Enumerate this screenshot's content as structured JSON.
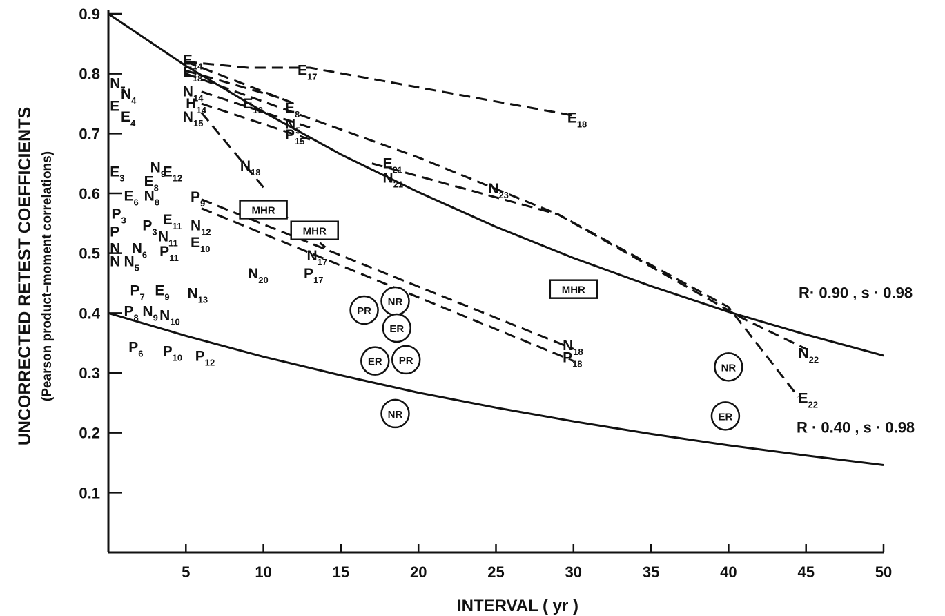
{
  "chart_data": {
    "type": "line",
    "ylabel_line1": "UNCORRECTED RETEST COEFFICIENTS",
    "ylabel_line2": "(Pearson product–moment correlations)",
    "xlabel": "INTERVAL ( yr )",
    "xlim": [
      0,
      50
    ],
    "ylim": [
      0,
      0.9
    ],
    "x_ticks": [
      5,
      10,
      15,
      20,
      25,
      30,
      35,
      40,
      45,
      50
    ],
    "x_tick_labels": [
      "5",
      "10",
      "15",
      "20",
      "25",
      "30",
      "35",
      "40",
      "45",
      "50"
    ],
    "y_ticks": [
      0.1,
      0.2,
      0.3,
      0.4,
      0.5,
      0.6,
      0.7,
      0.8,
      0.9
    ],
    "y_tick_labels": [
      "0.1",
      "0.2",
      "0.3",
      "0.4",
      "0.5",
      "0.6",
      "0.7",
      "0.8",
      "0.9"
    ],
    "model_curves": [
      {
        "annotation": "R· 0.90 , s · 0.98",
        "x": [
          0,
          5,
          10,
          15,
          20,
          25,
          30,
          35,
          40,
          45,
          50
        ],
        "y": [
          0.9,
          0.813,
          0.736,
          0.665,
          0.602,
          0.544,
          0.492,
          0.445,
          0.402,
          0.364,
          0.329
        ]
      },
      {
        "annotation": "R · 0.40 , s · 0.98",
        "x": [
          0,
          5,
          10,
          15,
          20,
          25,
          30,
          35,
          40,
          45,
          50
        ],
        "y": [
          0.4,
          0.362,
          0.327,
          0.296,
          0.267,
          0.242,
          0.219,
          0.198,
          0.179,
          0.162,
          0.146
        ]
      }
    ],
    "dashed_series": [
      {
        "points": [
          [
            5,
            0.82
          ],
          [
            9,
            0.81
          ],
          [
            13,
            0.81
          ],
          [
            30,
            0.73
          ]
        ]
      },
      {
        "points": [
          [
            5,
            0.82
          ],
          [
            12,
            0.75
          ]
        ]
      },
      {
        "points": [
          [
            5,
            0.805
          ],
          [
            11,
            0.76
          ]
        ]
      },
      {
        "points": [
          [
            5,
            0.8
          ],
          [
            20,
            0.66
          ],
          [
            29,
            0.565
          ],
          [
            41,
            0.39
          ],
          [
            45,
            0.34
          ]
        ]
      },
      {
        "points": [
          [
            6,
            0.77
          ],
          [
            13,
            0.71
          ]
        ]
      },
      {
        "points": [
          [
            6,
            0.75
          ],
          [
            13,
            0.69
          ]
        ]
      },
      {
        "points": [
          [
            6,
            0.735
          ],
          [
            10,
            0.61
          ]
        ]
      },
      {
        "points": [
          [
            6,
            0.59
          ],
          [
            30,
            0.34
          ]
        ]
      },
      {
        "points": [
          [
            6,
            0.575
          ],
          [
            30,
            0.32
          ]
        ]
      },
      {
        "points": [
          [
            11,
            0.57
          ],
          [
            14,
            0.51
          ]
        ]
      },
      {
        "points": [
          [
            17,
            0.65
          ],
          [
            29,
            0.565
          ],
          [
            40,
            0.41
          ],
          [
            44.5,
            0.26
          ]
        ]
      }
    ],
    "labels": [
      {
        "text": "E",
        "sub": "14",
        "x": 4.8,
        "y": 0.815
      },
      {
        "text": "E",
        "sub": "18",
        "x": 4.8,
        "y": 0.795
      },
      {
        "text": "E",
        "sub": "17",
        "x": 12.2,
        "y": 0.798
      },
      {
        "text": "N",
        "sub": "14",
        "x": 4.8,
        "y": 0.762
      },
      {
        "text": "E",
        "sub": "19",
        "x": 8.7,
        "y": 0.742
      },
      {
        "text": "E",
        "sub": "8",
        "x": 11.4,
        "y": 0.735
      },
      {
        "text": "H",
        "sub": "14",
        "x": 5.0,
        "y": 0.742
      },
      {
        "text": "N",
        "sub": "15",
        "x": 4.8,
        "y": 0.72
      },
      {
        "text": "N",
        "sub": "5",
        "x": 11.4,
        "y": 0.708
      },
      {
        "text": "P",
        "sub": "15",
        "x": 11.4,
        "y": 0.69
      },
      {
        "text": "E",
        "sub": "18",
        "x": 29.6,
        "y": 0.718
      },
      {
        "text": "N",
        "sub": "7",
        "x": 0.1,
        "y": 0.776
      },
      {
        "text": "N",
        "sub": "4",
        "x": 0.8,
        "y": 0.758
      },
      {
        "text": "E",
        "sub": "",
        "x": 0.1,
        "y": 0.738
      },
      {
        "text": "E",
        "sub": "4",
        "x": 0.8,
        "y": 0.72
      },
      {
        "text": "N",
        "sub": "18",
        "x": 8.5,
        "y": 0.638
      },
      {
        "text": "E",
        "sub": "3",
        "x": 0.1,
        "y": 0.628
      },
      {
        "text": "N",
        "sub": "9",
        "x": 2.7,
        "y": 0.635
      },
      {
        "text": "E",
        "sub": "12",
        "x": 3.5,
        "y": 0.628
      },
      {
        "text": "E",
        "sub": "8",
        "x": 2.3,
        "y": 0.612
      },
      {
        "text": "E",
        "sub": "6",
        "x": 1.0,
        "y": 0.588
      },
      {
        "text": "N",
        "sub": "8",
        "x": 2.3,
        "y": 0.588
      },
      {
        "text": "P",
        "sub": "9",
        "x": 5.3,
        "y": 0.586
      },
      {
        "text": "P",
        "sub": "3",
        "x": 0.2,
        "y": 0.558
      },
      {
        "text": "P",
        "sub": "",
        "x": 0.1,
        "y": 0.528
      },
      {
        "text": "P",
        "sub": "3",
        "x": 2.2,
        "y": 0.538
      },
      {
        "text": "E",
        "sub": "11",
        "x": 3.5,
        "y": 0.548
      },
      {
        "text": "N",
        "sub": "12",
        "x": 5.3,
        "y": 0.538
      },
      {
        "text": "N",
        "sub": "11",
        "x": 3.2,
        "y": 0.52
      },
      {
        "text": "E",
        "sub": "10",
        "x": 5.3,
        "y": 0.51
      },
      {
        "text": "N",
        "sub": "",
        "x": 0.1,
        "y": 0.5
      },
      {
        "text": "N",
        "sub": "6",
        "x": 1.5,
        "y": 0.5
      },
      {
        "text": "P",
        "sub": "11",
        "x": 3.3,
        "y": 0.495
      },
      {
        "text": "N",
        "sub": "",
        "x": 0.1,
        "y": 0.478
      },
      {
        "text": "N",
        "sub": "5",
        "x": 1.0,
        "y": 0.478
      },
      {
        "text": "N",
        "sub": "17",
        "x": 12.8,
        "y": 0.488
      },
      {
        "text": "N",
        "sub": "20",
        "x": 9.0,
        "y": 0.458
      },
      {
        "text": "P",
        "sub": "17",
        "x": 12.6,
        "y": 0.458
      },
      {
        "text": "P",
        "sub": "7",
        "x": 1.4,
        "y": 0.43
      },
      {
        "text": "E",
        "sub": "9",
        "x": 3.0,
        "y": 0.43
      },
      {
        "text": "N",
        "sub": "13",
        "x": 5.1,
        "y": 0.425
      },
      {
        "text": "P",
        "sub": "8",
        "x": 1.0,
        "y": 0.395
      },
      {
        "text": "N",
        "sub": "9",
        "x": 2.2,
        "y": 0.395
      },
      {
        "text": "N",
        "sub": "10",
        "x": 3.3,
        "y": 0.388
      },
      {
        "text": "P",
        "sub": "6",
        "x": 1.3,
        "y": 0.335
      },
      {
        "text": "P",
        "sub": "10",
        "x": 3.5,
        "y": 0.328
      },
      {
        "text": "P",
        "sub": "12",
        "x": 5.6,
        "y": 0.32
      },
      {
        "text": "E",
        "sub": "21",
        "x": 17.7,
        "y": 0.642
      },
      {
        "text": "N",
        "sub": "21",
        "x": 17.7,
        "y": 0.618
      },
      {
        "text": "N",
        "sub": "23",
        "x": 24.5,
        "y": 0.6
      },
      {
        "text": "N",
        "sub": "18",
        "x": 29.3,
        "y": 0.338
      },
      {
        "text": "P",
        "sub": "18",
        "x": 29.3,
        "y": 0.318
      },
      {
        "text": "N",
        "sub": "22",
        "x": 44.5,
        "y": 0.325
      },
      {
        "text": "E",
        "sub": "22",
        "x": 44.5,
        "y": 0.25
      }
    ],
    "circled": [
      {
        "text": "PR",
        "x": 16.5,
        "y": 0.405
      },
      {
        "text": "NR",
        "x": 18.5,
        "y": 0.42
      },
      {
        "text": "ER",
        "x": 18.6,
        "y": 0.375
      },
      {
        "text": "ER",
        "x": 17.2,
        "y": 0.32
      },
      {
        "text": "PR",
        "x": 19.2,
        "y": 0.322
      },
      {
        "text": "NR",
        "x": 18.5,
        "y": 0.232
      },
      {
        "text": "NR",
        "x": 40.0,
        "y": 0.31
      },
      {
        "text": "ER",
        "x": 39.8,
        "y": 0.228
      }
    ],
    "boxed": [
      {
        "text": "MHR",
        "x": 10.0,
        "y": 0.573
      },
      {
        "text": "MHR",
        "x": 13.3,
        "y": 0.538
      },
      {
        "text": "MHR",
        "x": 30.0,
        "y": 0.44
      }
    ]
  }
}
